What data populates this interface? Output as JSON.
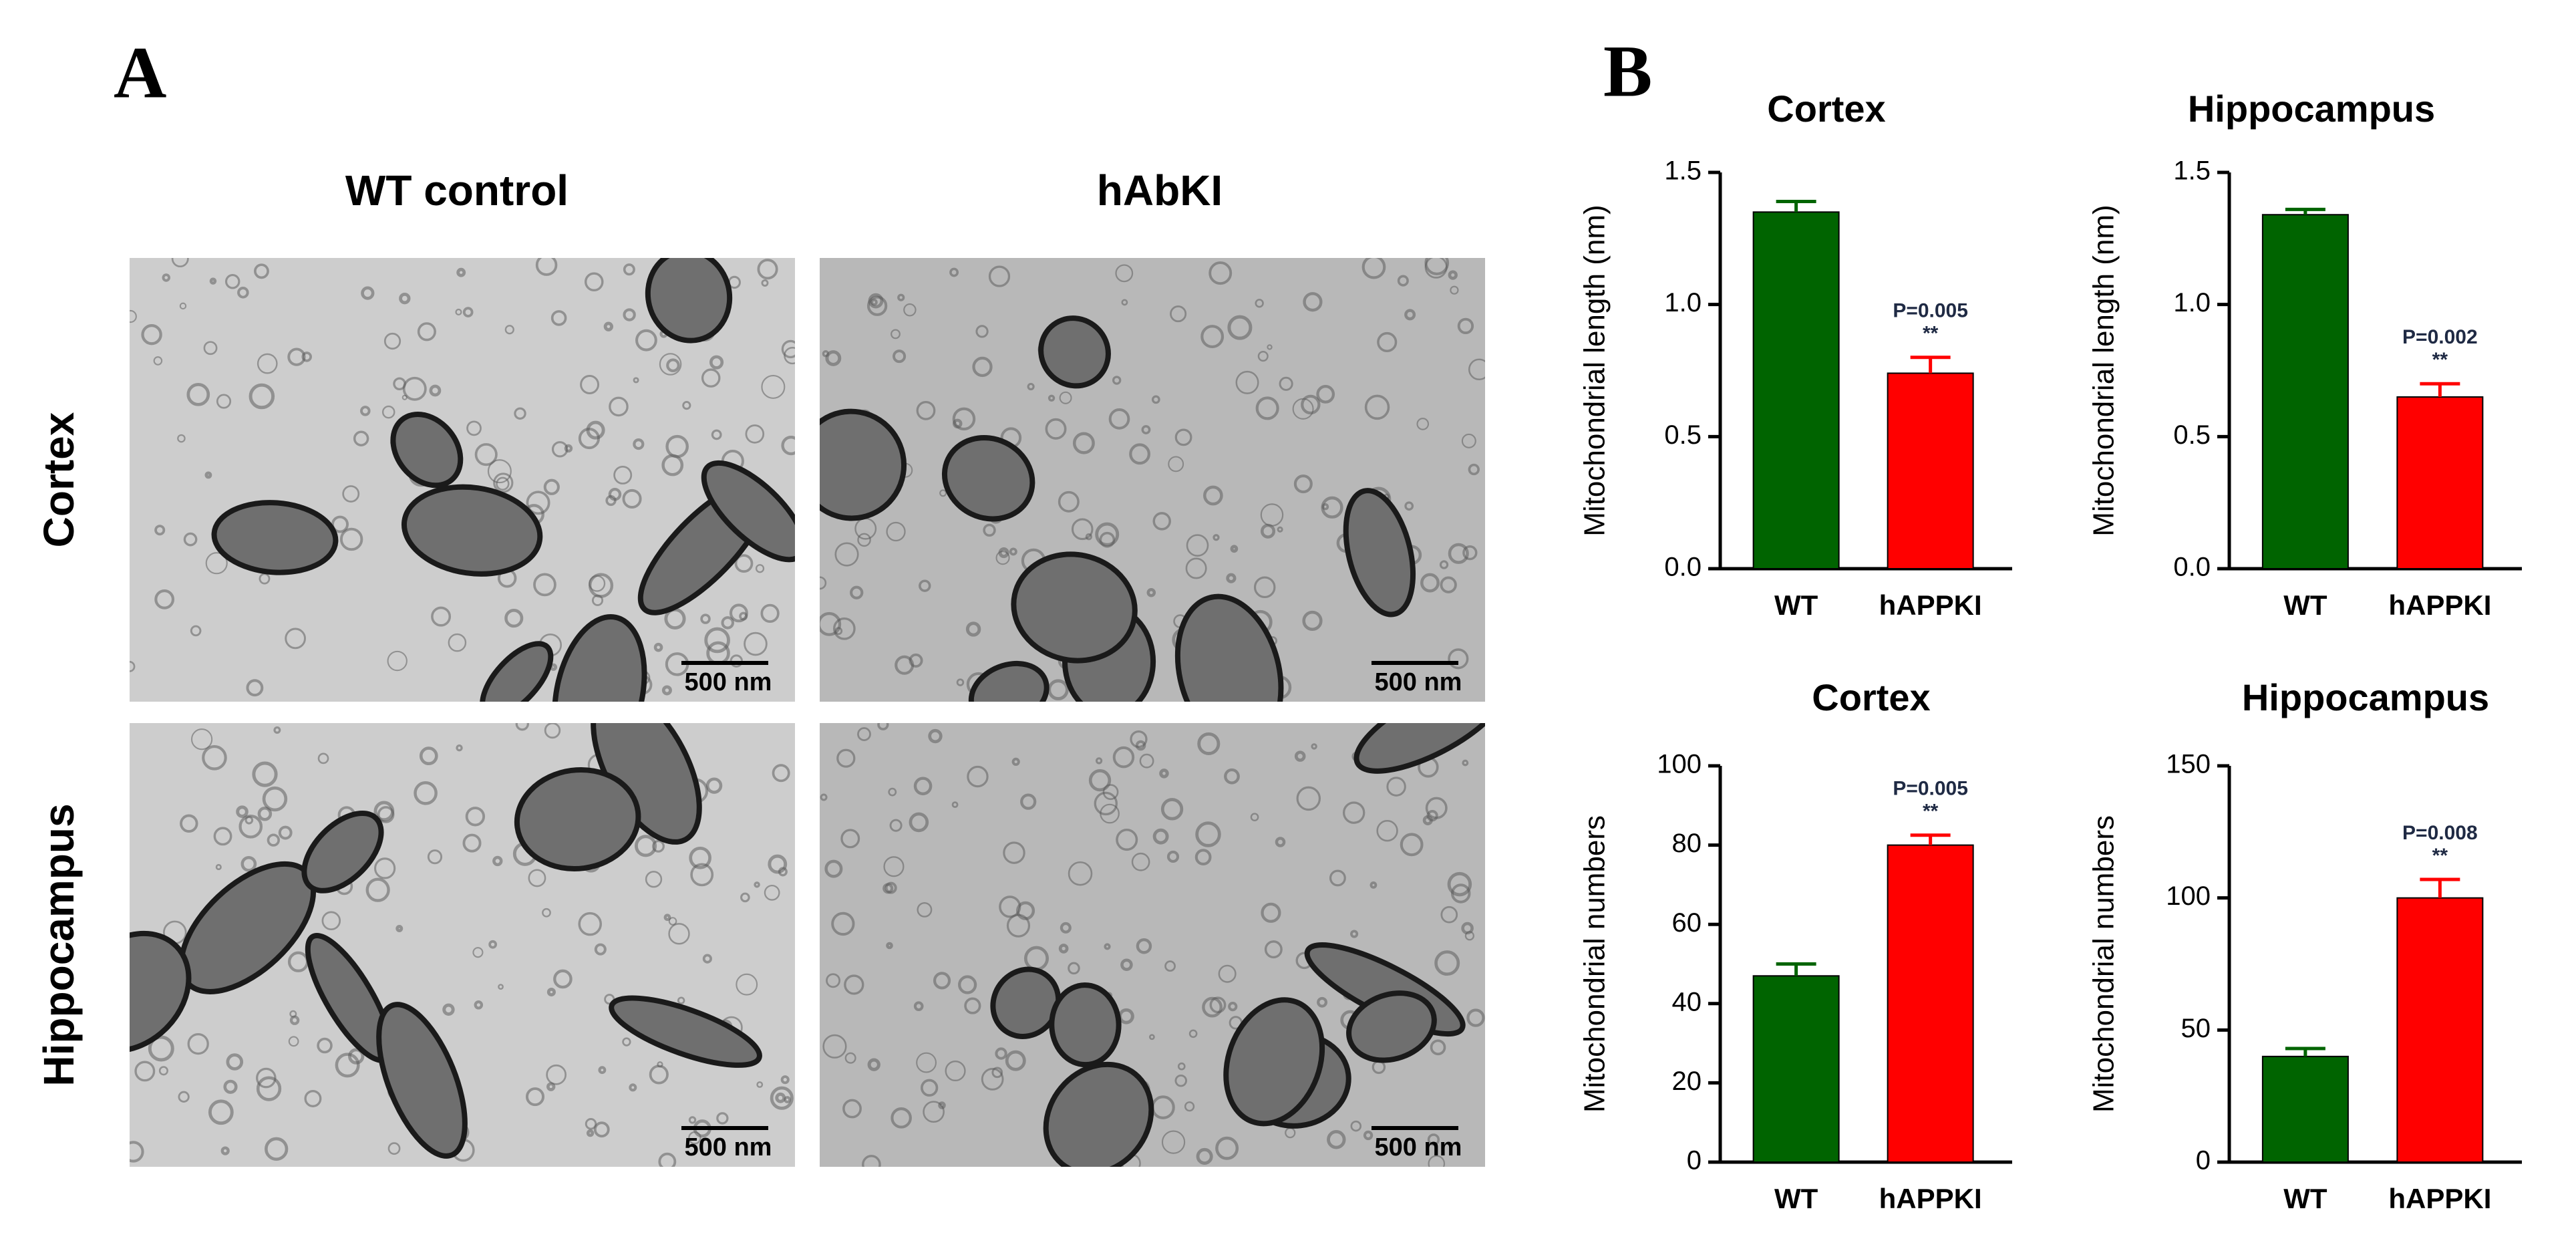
{
  "panel_a": {
    "label": "A",
    "columns": [
      "WT control",
      "hAbKI"
    ],
    "rows": [
      "Cortex",
      "Hippocampus"
    ],
    "scale_bars": [
      "500 nm",
      "500 nm",
      "500 nm",
      "500 nm"
    ]
  },
  "panel_b": {
    "label": "B"
  },
  "chart_data": [
    {
      "type": "bar",
      "title": "Cortex",
      "ylabel": "Mitochondrial length (nm)",
      "categories": [
        "WT",
        "hAPPKI"
      ],
      "values": [
        1.35,
        0.74
      ],
      "errors": [
        0.04,
        0.06
      ],
      "colors": [
        "#006400",
        "#ff0000"
      ],
      "annotation": {
        "p": "P=0.005",
        "stars": "**"
      },
      "ylim": [
        0,
        1.5
      ],
      "yticks": [
        {
          "value": 0,
          "label": "0.0"
        },
        {
          "value": 0.5,
          "label": "0.5"
        },
        {
          "value": 1,
          "label": "1.0"
        },
        {
          "value": 1.5,
          "label": "1.5"
        }
      ]
    },
    {
      "type": "bar",
      "title": "Hippocampus",
      "ylabel": "Mitochondrial length (nm)",
      "categories": [
        "WT",
        "hAPPKI"
      ],
      "values": [
        1.34,
        0.65
      ],
      "errors": [
        0.02,
        0.05
      ],
      "colors": [
        "#006400",
        "#ff0000"
      ],
      "annotation": {
        "p": "P=0.002",
        "stars": "**"
      },
      "ylim": [
        0,
        1.5
      ],
      "yticks": [
        {
          "value": 0,
          "label": "0.0"
        },
        {
          "value": 0.5,
          "label": "0.5"
        },
        {
          "value": 1,
          "label": "1.0"
        },
        {
          "value": 1.5,
          "label": "1.5"
        }
      ]
    },
    {
      "type": "bar",
      "title": "Cortex",
      "ylabel": "Mitochondrial numbers",
      "categories": [
        "WT",
        "hAPPKI"
      ],
      "values": [
        47,
        80
      ],
      "errors": [
        3,
        2.5
      ],
      "colors": [
        "#006400",
        "#ff0000"
      ],
      "annotation": {
        "p": "P=0.005",
        "stars": "**"
      },
      "ylim": [
        0,
        100
      ],
      "yticks": [
        0,
        20,
        40,
        60,
        80,
        100
      ]
    },
    {
      "type": "bar",
      "title": "Hippocampus",
      "ylabel": "Mitochondrial numbers",
      "categories": [
        "WT",
        "hAPPKI"
      ],
      "values": [
        40,
        100
      ],
      "errors": [
        3,
        7
      ],
      "colors": [
        "#006400",
        "#ff0000"
      ],
      "annotation": {
        "p": "P=0.008",
        "stars": "**"
      },
      "ylim": [
        0,
        150
      ],
      "yticks": [
        0,
        50,
        100,
        150
      ]
    }
  ]
}
